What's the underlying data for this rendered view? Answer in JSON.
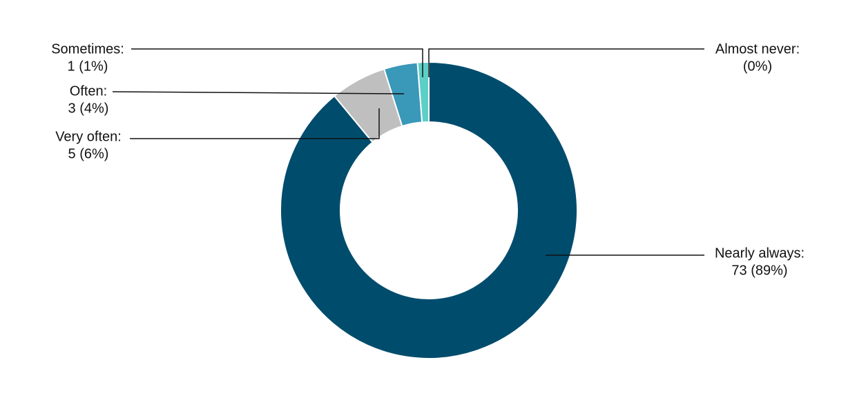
{
  "chart_data": {
    "type": "donut",
    "categories": [
      "Nearly always:",
      "Very often:",
      "Often:",
      "Sometimes:",
      "Almost never:"
    ],
    "values": [
      73,
      5,
      3,
      1,
      0
    ],
    "value_labels": [
      "73 (89%)",
      "5 (6%)",
      "3 (4%)",
      "1 (1%)",
      "(0%)"
    ],
    "colors": [
      "#004c6d",
      "#bfbfbf",
      "#3a98b9",
      "#5ccfc6",
      "#9fe3dc"
    ]
  }
}
